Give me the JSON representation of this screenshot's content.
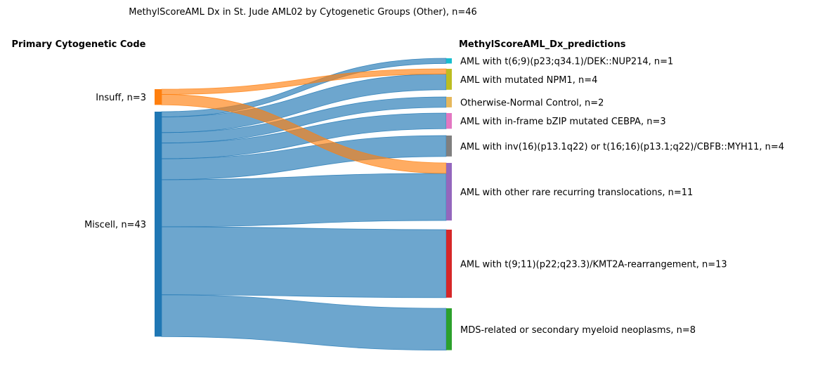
{
  "title": "MethylScoreAML Dx in St. Jude AML02 by Cytogenetic Groups (Other), n=46",
  "left_header": "Primary Cytogenetic Code",
  "right_header": "MethylScoreAML_Dx_predictions",
  "chart_data": {
    "type": "sankey",
    "sources": [
      {
        "id": "insuff",
        "label": "Insuff, n=3",
        "count": 3,
        "color": "#ff7f0e"
      },
      {
        "id": "miscell",
        "label": "Miscell, n=43",
        "count": 43,
        "color": "#1f77b4"
      }
    ],
    "targets": [
      {
        "id": "dek",
        "label": "AML with t(6;9)(p23;q34.1)/DEK::NUP214, n=1",
        "count": 1,
        "color": "#17becf"
      },
      {
        "id": "npm1",
        "label": "AML with mutated NPM1, n=4",
        "count": 4,
        "color": "#bcbd22"
      },
      {
        "id": "onc",
        "label": "Otherwise-Normal Control, n=2",
        "count": 2,
        "color": "#e6b85c"
      },
      {
        "id": "cebpa",
        "label": "AML with in-frame bZIP mutated CEBPA, n=3",
        "count": 3,
        "color": "#e377c2"
      },
      {
        "id": "cbfb",
        "label": "AML with inv(16)(p13.1q22) or t(16;16)(p13.1;q22)/CBFB::MYH11, n=4",
        "count": 4,
        "color": "#7f7f7f"
      },
      {
        "id": "rare",
        "label": "AML with other rare recurring translocations, n=11",
        "count": 11,
        "color": "#9467bd"
      },
      {
        "id": "kmt2a",
        "label": "AML with t(9;11)(p22;q23.3)/KMT2A-rearrangement, n=13",
        "count": 13,
        "color": "#d62728"
      },
      {
        "id": "mds",
        "label": "MDS-related or secondary myeloid neoplasms, n=8",
        "count": 8,
        "color": "#2ca02c"
      }
    ],
    "links": [
      {
        "source": "insuff",
        "target": "npm1",
        "value": 1
      },
      {
        "source": "insuff",
        "target": "rare",
        "value": 2
      },
      {
        "source": "miscell",
        "target": "dek",
        "value": 1
      },
      {
        "source": "miscell",
        "target": "npm1",
        "value": 3
      },
      {
        "source": "miscell",
        "target": "onc",
        "value": 2
      },
      {
        "source": "miscell",
        "target": "cebpa",
        "value": 3
      },
      {
        "source": "miscell",
        "target": "cbfb",
        "value": 4
      },
      {
        "source": "miscell",
        "target": "rare",
        "value": 9
      },
      {
        "source": "miscell",
        "target": "kmt2a",
        "value": 13
      },
      {
        "source": "miscell",
        "target": "mds",
        "value": 8
      }
    ]
  }
}
